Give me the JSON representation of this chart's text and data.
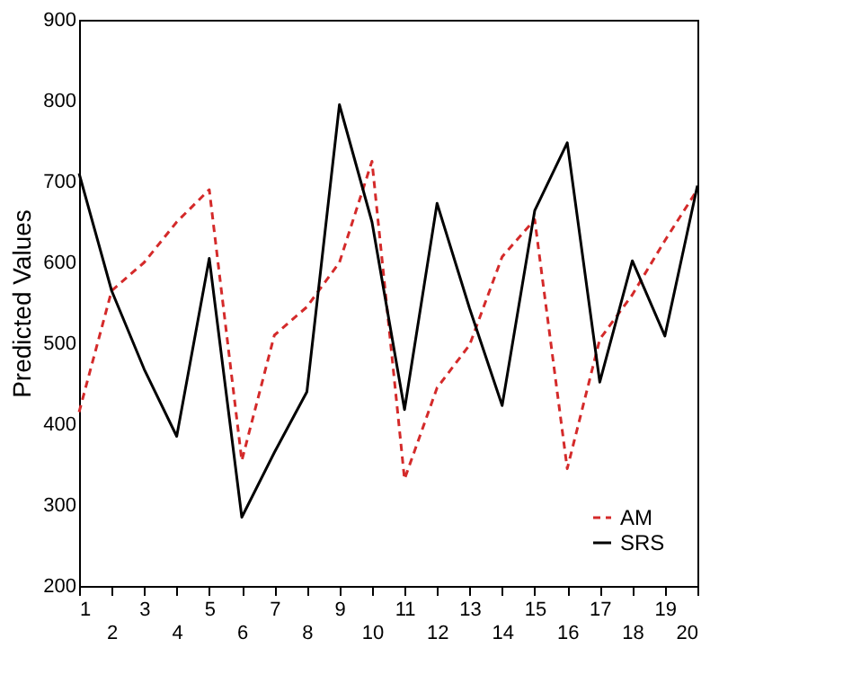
{
  "chart_data": {
    "type": "line",
    "ylabel": "Predicted Values",
    "categories": [
      "1",
      "2",
      "3",
      "4",
      "5",
      "6",
      "7",
      "8",
      "9",
      "10",
      "11",
      "12",
      "13",
      "14",
      "15",
      "16",
      "17",
      "18",
      "19",
      "20"
    ],
    "ylim": [
      200,
      900
    ],
    "yticks": [
      200,
      300,
      400,
      500,
      600,
      700,
      800,
      900
    ],
    "grid": false,
    "legend": "bottom right",
    "series": [
      {
        "name": "AM",
        "color": "#d42a2a",
        "line_style": "dashed",
        "values": [
          415,
          565,
          600,
          650,
          690,
          355,
          510,
          545,
          600,
          725,
          332,
          445,
          498,
          607,
          653,
          345,
          505,
          560,
          627,
          690
        ]
      },
      {
        "name": "SRS",
        "color": "#000000",
        "line_style": "solid",
        "values": [
          710,
          565,
          468,
          385,
          605,
          285,
          365,
          440,
          795,
          650,
          418,
          673,
          543,
          423,
          664,
          748,
          452,
          602,
          509,
          695
        ]
      }
    ]
  }
}
